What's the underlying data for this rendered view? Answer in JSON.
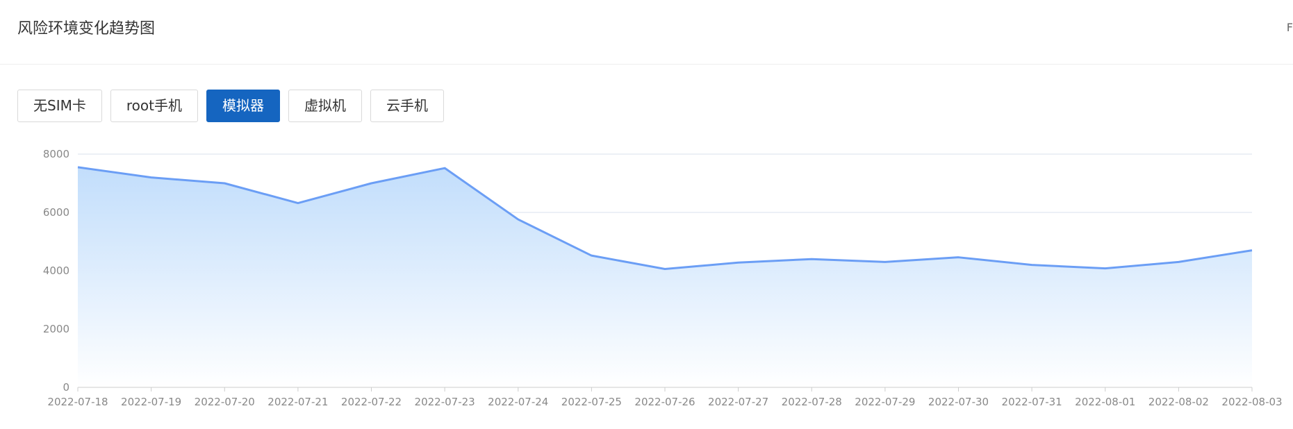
{
  "header": {
    "title": "风险环境变化趋势图",
    "extra": "F"
  },
  "tabs": [
    {
      "label": "无SIM卡",
      "active": false
    },
    {
      "label": "root手机",
      "active": false
    },
    {
      "label": "模拟器",
      "active": true
    },
    {
      "label": "虚拟机",
      "active": false
    },
    {
      "label": "云手机",
      "active": false
    }
  ],
  "colors": {
    "accent": "#1565c0",
    "line": "#6b9ef5",
    "area_top": "#bfdcfb",
    "area_bottom": "#ffffff",
    "grid": "#d9e2ec"
  },
  "chart_data": {
    "type": "area",
    "title": "",
    "xlabel": "",
    "ylabel": "",
    "ylim": [
      0,
      8000
    ],
    "yticks": [
      0,
      2000,
      4000,
      6000,
      8000
    ],
    "grid": true,
    "categories": [
      "2022-07-18",
      "2022-07-19",
      "2022-07-20",
      "2022-07-21",
      "2022-07-22",
      "2022-07-23",
      "2022-07-24",
      "2022-07-25",
      "2022-07-26",
      "2022-07-27",
      "2022-07-28",
      "2022-07-29",
      "2022-07-30",
      "2022-07-31",
      "2022-08-01",
      "2022-08-02",
      "2022-08-03"
    ],
    "series": [
      {
        "values": [
          7550,
          7200,
          7000,
          6320,
          7000,
          7520,
          5760,
          4520,
          4060,
          4280,
          4400,
          4300,
          4460,
          4200,
          4080,
          4300,
          4700
        ]
      }
    ]
  }
}
